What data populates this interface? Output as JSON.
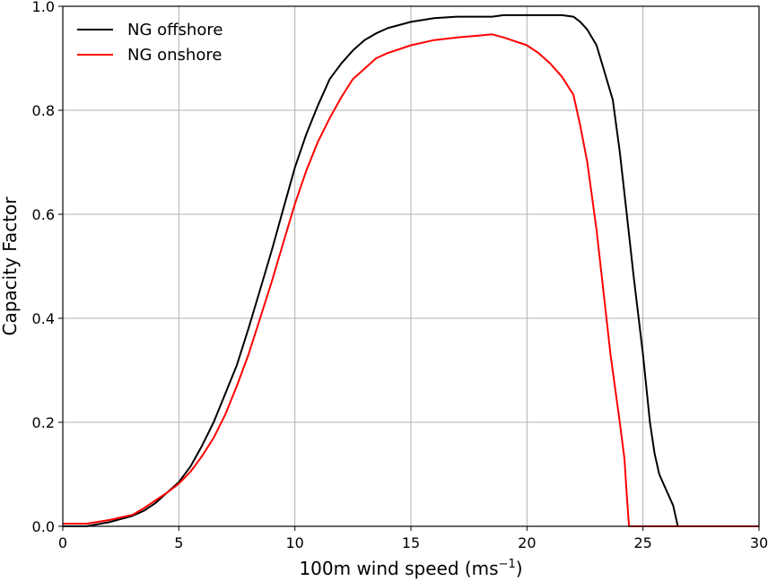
{
  "chart_data": {
    "type": "line",
    "title": "",
    "xlabel": "100m wind speed (ms",
    "xlabel_unit_exponent": "−1",
    "xlabel_close": ")",
    "ylabel": "Capacity Factor",
    "xlim": [
      0,
      30
    ],
    "ylim": [
      0,
      1.0
    ],
    "xticks": [
      0,
      5,
      10,
      15,
      20,
      25,
      30
    ],
    "xtick_labels": [
      "0",
      "5",
      "10",
      "15",
      "20",
      "25",
      "30"
    ],
    "yticks": [
      0,
      0.2,
      0.4,
      0.6,
      0.8,
      1.0
    ],
    "ytick_labels": [
      "0.0",
      "0.2",
      "0.4",
      "0.6",
      "0.8",
      "1.0"
    ],
    "grid": true,
    "legend_position": "top-left",
    "series": [
      {
        "name": "NG offshore",
        "color": "#000000",
        "x": [
          0,
          1,
          2,
          3,
          3.5,
          4,
          4.5,
          5,
          5.5,
          6,
          6.5,
          7,
          7.5,
          8,
          8.5,
          9,
          9.5,
          10,
          10.5,
          11,
          11.5,
          12,
          12.5,
          13,
          13.5,
          14,
          15,
          16,
          17,
          18,
          18.5,
          19,
          20,
          21,
          21.5,
          22,
          22.3,
          22.6,
          23,
          23.3,
          23.7,
          24,
          24.3,
          24.6,
          25,
          25.3,
          25.5,
          25.7,
          26,
          26.3,
          26.5,
          27,
          28,
          29,
          30
        ],
        "y": [
          0.0,
          0.0,
          0.008,
          0.02,
          0.03,
          0.045,
          0.065,
          0.085,
          0.115,
          0.155,
          0.2,
          0.255,
          0.31,
          0.38,
          0.455,
          0.53,
          0.61,
          0.69,
          0.755,
          0.81,
          0.86,
          0.89,
          0.915,
          0.935,
          0.948,
          0.958,
          0.97,
          0.977,
          0.98,
          0.98,
          0.98,
          0.983,
          0.983,
          0.983,
          0.983,
          0.98,
          0.97,
          0.955,
          0.925,
          0.88,
          0.82,
          0.72,
          0.6,
          0.48,
          0.33,
          0.2,
          0.14,
          0.1,
          0.07,
          0.04,
          0.0,
          0.0,
          0.0,
          0.0,
          0.0
        ]
      },
      {
        "name": "NG onshore",
        "color": "#ff0000",
        "x": [
          0,
          1,
          2,
          3,
          3.5,
          4,
          4.5,
          5,
          5.5,
          6,
          6.5,
          7,
          7.5,
          8,
          8.5,
          9,
          9.5,
          10,
          10.5,
          11,
          11.5,
          12,
          12.5,
          13,
          13.5,
          14,
          15,
          16,
          17,
          18,
          18.5,
          19,
          20,
          20.5,
          21,
          21.5,
          22,
          22.3,
          22.6,
          23,
          23.3,
          23.6,
          24,
          24.2,
          24.3,
          24.4,
          25,
          26,
          27,
          28,
          29,
          30
        ],
        "y": [
          0.005,
          0.005,
          0.012,
          0.022,
          0.035,
          0.05,
          0.065,
          0.082,
          0.105,
          0.135,
          0.17,
          0.215,
          0.27,
          0.33,
          0.4,
          0.47,
          0.545,
          0.62,
          0.685,
          0.74,
          0.785,
          0.825,
          0.86,
          0.88,
          0.9,
          0.91,
          0.925,
          0.935,
          0.94,
          0.944,
          0.946,
          0.94,
          0.925,
          0.91,
          0.89,
          0.865,
          0.83,
          0.77,
          0.7,
          0.57,
          0.45,
          0.33,
          0.2,
          0.13,
          0.06,
          0.0,
          0.0,
          0.0,
          0.0,
          0.0,
          0.0,
          0.0
        ]
      }
    ]
  }
}
